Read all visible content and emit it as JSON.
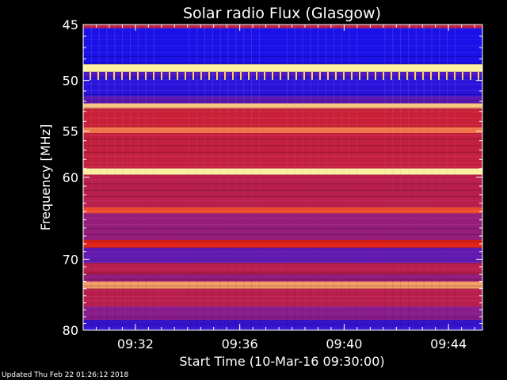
{
  "chart_data": {
    "type": "heatmap",
    "title": "Solar radio Flux (Glasgow)",
    "xlabel": "Start Time (10-Mar-16 09:30:00)",
    "ylabel": "Frequency [MHz]",
    "x_ticks": [
      "09:32",
      "09:36",
      "09:40",
      "09:44"
    ],
    "x_tick_minutes": [
      2,
      6,
      10,
      14
    ],
    "xlim_minutes": [
      0,
      15.3
    ],
    "y_ticks": [
      45,
      50,
      55,
      60,
      70,
      80
    ],
    "ylim": [
      45,
      80
    ],
    "y_scale": "log",
    "grid": false,
    "colors": {
      "background": "#000000",
      "low": "#1a10e8",
      "mid": "#8a1c8c",
      "high": "#e82010",
      "peak": "#fff0a0"
    },
    "bands": [
      {
        "from": 45.0,
        "to": 45.3,
        "level": 0.6
      },
      {
        "from": 45.3,
        "to": 48.5,
        "level": 0.0
      },
      {
        "from": 48.5,
        "to": 49.2,
        "level": 1.0
      },
      {
        "from": 49.2,
        "to": 49.7,
        "level": 0.15
      },
      {
        "from": 49.7,
        "to": 51.5,
        "level": 0.05
      },
      {
        "from": 51.5,
        "to": 52.2,
        "level": 0.2
      },
      {
        "from": 52.2,
        "to": 52.7,
        "level": 0.95
      },
      {
        "from": 52.7,
        "to": 54.6,
        "level": 0.62
      },
      {
        "from": 54.6,
        "to": 55.2,
        "level": 0.85
      },
      {
        "from": 55.2,
        "to": 59.0,
        "level": 0.6
      },
      {
        "from": 59.0,
        "to": 59.7,
        "level": 1.0
      },
      {
        "from": 59.7,
        "to": 63.5,
        "level": 0.55
      },
      {
        "from": 63.5,
        "to": 64.2,
        "level": 0.8
      },
      {
        "from": 64.2,
        "to": 67.5,
        "level": 0.4
      },
      {
        "from": 67.5,
        "to": 68.5,
        "level": 0.72
      },
      {
        "from": 68.5,
        "to": 70.5,
        "level": 0.22
      },
      {
        "from": 70.5,
        "to": 72.0,
        "level": 0.55
      },
      {
        "from": 72.0,
        "to": 73.0,
        "level": 0.4
      },
      {
        "from": 73.0,
        "to": 74.0,
        "level": 0.9
      },
      {
        "from": 74.0,
        "to": 76.5,
        "level": 0.55
      },
      {
        "from": 76.5,
        "to": 78.5,
        "level": 0.35
      },
      {
        "from": 78.5,
        "to": 80.0,
        "level": 0.08
      }
    ]
  },
  "footer": {
    "updated": "Updated Thu Feb 22 01:26:12 2018"
  }
}
